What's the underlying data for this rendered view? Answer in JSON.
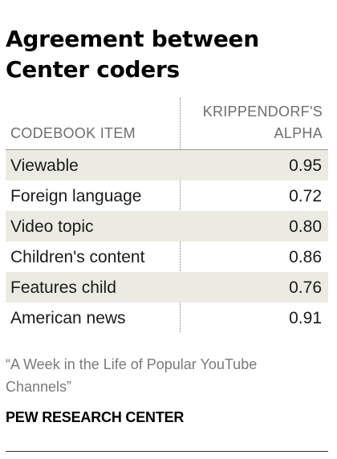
{
  "title_lines": [
    "Agreement between",
    "Center coders"
  ],
  "table": {
    "col_headers": {
      "item": "CODEBOOK ITEM",
      "value_lines": [
        "KRIPPENDORF'S",
        "ALPHA"
      ]
    },
    "rows": [
      {
        "label": "Viewable",
        "value": "0.95"
      },
      {
        "label": "Foreign language",
        "value": "0.72"
      },
      {
        "label": "Video topic",
        "value": "0.80"
      },
      {
        "label": "Children's content",
        "value": "0.86"
      },
      {
        "label": "Features child",
        "value": "0.76"
      },
      {
        "label": "American news",
        "value": "0.91"
      }
    ]
  },
  "source_lines": [
    "“A Week in the Life of Popular YouTube",
    "Channels”"
  ],
  "credit": "PEW RESEARCH CENTER",
  "colors": {
    "row_shade": "#ebebe4",
    "header_text": "#6e6e6e",
    "source_text": "#7a7a7a"
  },
  "chart_data": {
    "type": "table",
    "title": "Agreement between Center coders",
    "columns": [
      "CODEBOOK ITEM",
      "KRIPPENDORF'S ALPHA"
    ],
    "categories": [
      "Viewable",
      "Foreign language",
      "Video topic",
      "Children's content",
      "Features child",
      "American news"
    ],
    "values": [
      0.95,
      0.72,
      0.8,
      0.86,
      0.76,
      0.91
    ]
  }
}
